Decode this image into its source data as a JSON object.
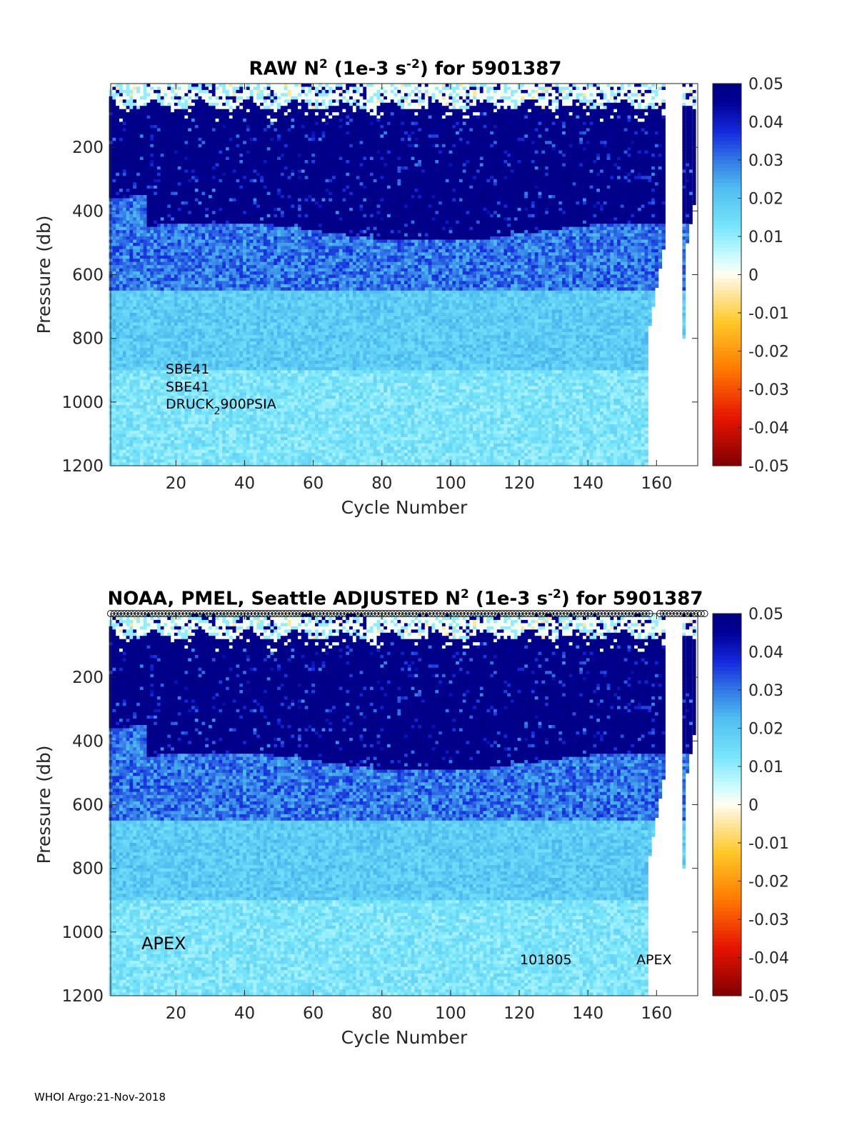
{
  "footer": "WHOI Argo:21-Nov-2018",
  "chart_data": [
    {
      "type": "heatmap",
      "title_prefix": "RAW N",
      "title_sup": "2",
      "title_mid": " (1e-3 s",
      "title_sup2": "-2",
      "title_suffix": ") for 5901387",
      "xlabel": "Cycle Number",
      "ylabel": "Pressure (db)",
      "xlim": [
        1,
        172
      ],
      "ylim": [
        1200,
        0
      ],
      "xticks": [
        "20",
        "40",
        "60",
        "80",
        "100",
        "120",
        "140",
        "160"
      ],
      "yticks": [
        "200",
        "400",
        "600",
        "800",
        "1000",
        "1200"
      ],
      "colorbar": {
        "range": [
          -0.05,
          0.05
        ],
        "ticks": [
          "0.05",
          "0.04",
          "0.03",
          "0.02",
          "0.01",
          "0",
          "-0.01",
          "-0.02",
          "-0.03",
          "-0.04",
          "-0.05"
        ]
      },
      "profiles_end_cycle": 157,
      "gap_cycles": [
        162,
        168
      ],
      "annotations": [
        "SBE41",
        "SBE41",
        "DRUCK",
        "2",
        "900PSIA"
      ],
      "layers": [
        {
          "pressure_range": [
            0,
            60
          ],
          "approx_value": 0.0
        },
        {
          "pressure_range": [
            60,
            470
          ],
          "approx_value": 0.05
        },
        {
          "pressure_range": [
            470,
            650
          ],
          "approx_value": 0.02
        },
        {
          "pressure_range": [
            650,
            1200
          ],
          "approx_value": 0.01
        }
      ]
    },
    {
      "type": "heatmap",
      "title_prefix": "NOAA, PMEL, Seattle  ADJUSTED N",
      "title_sup": "2",
      "title_mid": " (1e-3 s",
      "title_sup2": "-2",
      "title_suffix": ") for 5901387",
      "xlabel": "Cycle Number",
      "ylabel": "Pressure (db)",
      "xlim": [
        1,
        172
      ],
      "ylim": [
        1200,
        0
      ],
      "xticks": [
        "20",
        "40",
        "60",
        "80",
        "100",
        "120",
        "140",
        "160"
      ],
      "yticks": [
        "200",
        "400",
        "600",
        "800",
        "1000",
        "1200"
      ],
      "colorbar": {
        "range": [
          -0.05,
          0.05
        ],
        "ticks": [
          "0.05",
          "0.04",
          "0.03",
          "0.02",
          "0.01",
          "0",
          "-0.01",
          "-0.02",
          "-0.03",
          "-0.04",
          "-0.05"
        ]
      },
      "profiles_end_cycle": 157,
      "gap_cycles": [
        162,
        168
      ],
      "qc_markers": "circles along top edge for each cycle",
      "annotations": [
        "APEX",
        "101805",
        "APEX"
      ],
      "layers": [
        {
          "pressure_range": [
            0,
            60
          ],
          "approx_value": 0.0
        },
        {
          "pressure_range": [
            60,
            470
          ],
          "approx_value": 0.05
        },
        {
          "pressure_range": [
            470,
            650
          ],
          "approx_value": 0.02
        },
        {
          "pressure_range": [
            650,
            1200
          ],
          "approx_value": 0.01
        }
      ]
    }
  ]
}
